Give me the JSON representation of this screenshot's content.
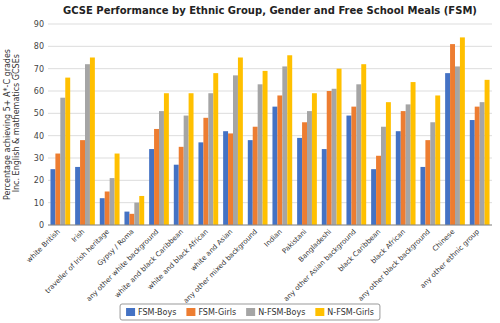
{
  "chart_data": {
    "type": "bar",
    "title": "GCSE Performance by Ethnic Group, Gender and Free School Meals (FSM)",
    "ylabel": "Percentage achieving 5+ A*-C grades Inc. English & mathematics GCSEs",
    "categories": [
      "white British",
      "Irish",
      "traveller of Irish heritage",
      "Gypsy / Roma",
      "any other white background",
      "white and black Caribbean",
      "white and black African",
      "white and Asian",
      "any other mixed background",
      "Indian",
      "Pakistani",
      "Bangladeshi",
      "any other Asian background",
      "black Caribbean",
      "black African",
      "any other black background",
      "Chinese",
      "any other ethnic group"
    ],
    "series": [
      {
        "name": "FSM-Boys",
        "color": "#4472C4",
        "values": [
          25,
          26,
          12,
          6,
          34,
          27,
          37,
          42,
          38,
          53,
          39,
          34,
          49,
          25,
          42,
          26,
          68,
          47
        ]
      },
      {
        "name": "FSM-Girls",
        "color": "#ED7D31",
        "values": [
          32,
          38,
          15,
          5,
          43,
          35,
          48,
          41,
          44,
          58,
          46,
          60,
          53,
          31,
          51,
          38,
          81,
          53
        ]
      },
      {
        "name": "N-FSM-Boys",
        "color": "#A5A5A5",
        "values": [
          57,
          72,
          21,
          10,
          51,
          49,
          59,
          67,
          63,
          71,
          51,
          61,
          63,
          44,
          54,
          46,
          71,
          55
        ]
      },
      {
        "name": "N-FSM-Girls",
        "color": "#FFC000",
        "values": [
          66,
          75,
          32,
          13,
          59,
          59,
          68,
          75,
          69,
          76,
          59,
          70,
          72,
          55,
          64,
          58,
          84,
          65
        ]
      }
    ],
    "ylim": [
      0,
      90
    ],
    "yticks": [
      0,
      10,
      20,
      30,
      40,
      50,
      60,
      70,
      80,
      90
    ],
    "grid": true,
    "legend": "bottom"
  }
}
